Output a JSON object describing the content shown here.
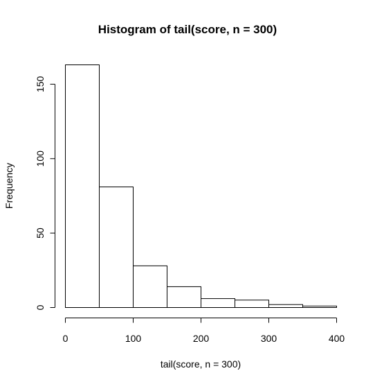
{
  "chart_data": {
    "type": "bar",
    "title": "Histogram of tail(score, n = 300)",
    "xlabel": "tail(score, n = 300)",
    "ylabel": "Frequency",
    "bins": [
      {
        "from": 0,
        "to": 50,
        "count": 163
      },
      {
        "from": 50,
        "to": 100,
        "count": 81
      },
      {
        "from": 100,
        "to": 150,
        "count": 28
      },
      {
        "from": 150,
        "to": 200,
        "count": 14
      },
      {
        "from": 200,
        "to": 250,
        "count": 6
      },
      {
        "from": 250,
        "to": 300,
        "count": 5
      },
      {
        "from": 300,
        "to": 350,
        "count": 2
      },
      {
        "from": 350,
        "to": 400,
        "count": 1
      }
    ],
    "xlim": [
      0,
      400
    ],
    "ylim": [
      0,
      163
    ],
    "x_ticks": [
      0,
      100,
      200,
      300,
      400
    ],
    "y_ticks": [
      0,
      50,
      100,
      150
    ],
    "grid": false,
    "legend": "none",
    "colors": {
      "bar_fill": "#ffffff",
      "bar_stroke": "#000000"
    }
  }
}
